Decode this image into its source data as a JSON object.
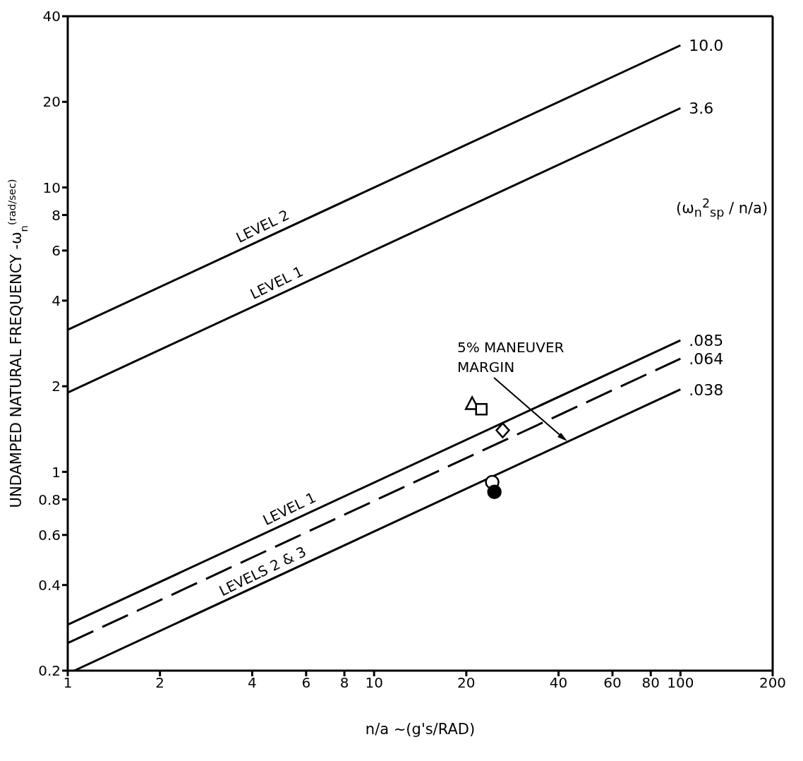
{
  "chart_data": {
    "type": "line",
    "xlabel": "n/a ~(g's/RAD)",
    "ylabel": "UNDAMPED NATURAL FREQUENCY  -ω$_{n}$$^{(rad/sec)}$",
    "legend_title": "(ω$_{n}$$^{2}$$_{sp}$ / n/a)",
    "log": "xy",
    "xlim": [
      1,
      200
    ],
    "xticks": [
      1,
      2,
      4,
      6,
      8,
      10,
      20,
      40,
      60,
      80,
      100,
      200
    ],
    "ylim": [
      0.2,
      40
    ],
    "yticks": [
      0.2,
      0.4,
      0.6,
      0.8,
      1,
      2,
      4,
      6,
      8,
      10,
      20,
      40
    ],
    "grid": false,
    "series": [
      {
        "color": "#000000",
        "line_style": "solid",
        "x": [
          1,
          100
        ],
        "values": [
          3.16,
          31.6
        ]
      },
      {
        "color": "#000000",
        "line_style": "solid",
        "x": [
          1,
          100
        ],
        "values": [
          1.9,
          19
        ]
      },
      {
        "color": "#000000",
        "line_style": "solid",
        "x": [
          1,
          100
        ],
        "values": [
          0.29,
          2.9
        ]
      },
      {
        "color": "#000000",
        "line_style": "dashed",
        "x": [
          1,
          100
        ],
        "values": [
          0.25,
          2.5
        ]
      },
      {
        "color": "#000000",
        "line_style": "solid",
        "x": [
          1.05,
          100
        ],
        "values": [
          0.2,
          1.95
        ]
      },
      {
        "type": "scatter",
        "color": "#000000",
        "marker": "triangle",
        "x": [
          20.9
        ],
        "values": [
          1.73
        ]
      },
      {
        "type": "scatter",
        "color": "#000000",
        "marker": "square",
        "x": [
          22.4
        ],
        "values": [
          1.66
        ]
      },
      {
        "type": "scatter",
        "color": "#000000",
        "marker": "diamond",
        "x": [
          26.3
        ],
        "values": [
          1.4
        ]
      },
      {
        "type": "scatter",
        "color": "#000000",
        "marker": "circle",
        "x": [
          24.3
        ],
        "values": [
          0.92
        ]
      },
      {
        "type": "scatter",
        "color": "#000000",
        "colors": [
          "#000000"
        ],
        "marker": "circle",
        "x": [
          24.7
        ],
        "values": [
          0.85
        ]
      }
    ],
    "annotations": [
      {
        "text": "10.0",
        "x": 100,
        "y": 31.6
      },
      {
        "text": "3.6",
        "x": 100,
        "y": 19
      },
      {
        "text": ".085",
        "x": 100,
        "y": 2.9
      },
      {
        "text": ".064",
        "x": 100,
        "y": 2.5
      },
      {
        "text": ".038",
        "x": 100,
        "y": 1.95
      },
      {
        "text": "LEVEL 2",
        "x": 4.5,
        "y": 6.7
      },
      {
        "text": "LEVEL 1",
        "x": 5,
        "y": 4.24
      },
      {
        "text": "LEVEL 1",
        "x": 5.5,
        "y": 0.68
      },
      {
        "text": "LEVELS 2 & 3",
        "x": 4.5,
        "y": 0.41
      },
      "5% MANEUVER\nMARGIN"
    ]
  }
}
